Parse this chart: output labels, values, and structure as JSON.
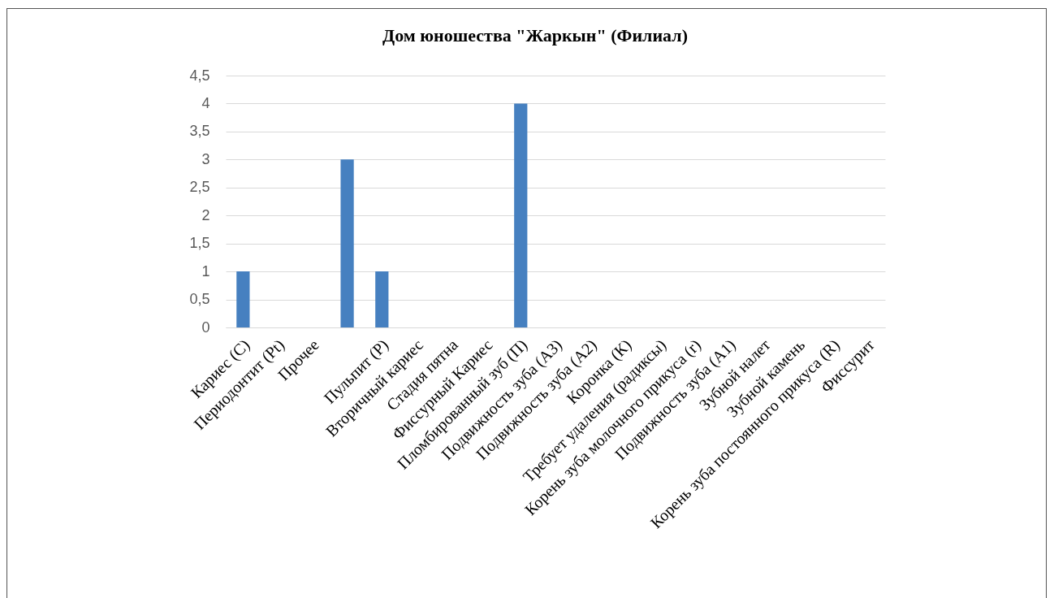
{
  "chart_data": {
    "type": "bar",
    "title": "Дом юношества \"Жаркын\" (Филиал)",
    "categories": [
      "Кариес (С)",
      "Периодонтит (Pt)",
      "Прочее",
      null,
      "Пульпит (P)",
      "Вторичный кариес",
      "Стадия пятна",
      "Фиссурный Кариес",
      "Пломбированный зуб (П)",
      "Подвижность зуба (А3)",
      "Подвижность зуба (А2)",
      "Коронка (К)",
      "Требует удаления (радиксы)",
      "Корень зуба молочного прикуса (r)",
      "Подвижность зуба (А1)",
      "Зубной налет",
      "Зубной камень",
      "Корень зуба постоянного прикуса (R)",
      "Фиссурит"
    ],
    "values": [
      1,
      0,
      0,
      3,
      1,
      0,
      0,
      0,
      4,
      0,
      0,
      0,
      0,
      0,
      0,
      0,
      0,
      0,
      0
    ],
    "color": "#4680c0",
    "ylim": [
      0,
      4.5
    ],
    "yticks": [
      0,
      {
        "value": 0.5,
        "label": "0,5"
      },
      1,
      {
        "value": 1.5,
        "label": "1,5"
      },
      2,
      {
        "value": 2.5,
        "label": "2,5"
      },
      3,
      {
        "value": 3.5,
        "label": "3,5"
      },
      4,
      {
        "value": 4.5,
        "label": "4,5"
      }
    ],
    "grid": "y"
  }
}
